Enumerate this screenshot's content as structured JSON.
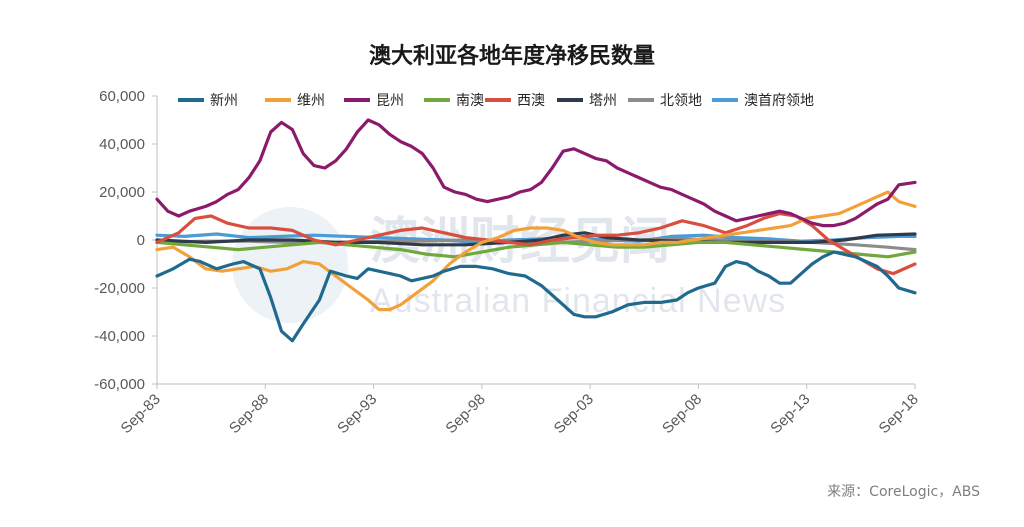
{
  "chart_data": {
    "type": "line",
    "title": "澳大利亚各地年度净移民数量",
    "xlabel": "",
    "ylabel": "",
    "ylim": [
      -60000,
      60000
    ],
    "yticks": [
      60000,
      40000,
      20000,
      0,
      -20000,
      -40000,
      -60000
    ],
    "ytick_labels": [
      "60,000",
      "40,000",
      "20,000",
      "0",
      "-20,000",
      "-40,000",
      "-60,000"
    ],
    "xlim": [
      1983.75,
      2018.75
    ],
    "xticks": [
      1983.75,
      1988.75,
      1993.75,
      1998.75,
      2003.75,
      2008.75,
      2013.75,
      2018.75
    ],
    "xtick_labels": [
      "Sep-83",
      "Sep-88",
      "Sep-93",
      "Sep-98",
      "Sep-03",
      "Sep-08",
      "Sep-13",
      "Sep-18"
    ],
    "grid": false,
    "legend_position": "top",
    "series": [
      {
        "name": "新州",
        "color": "#1f6a8e",
        "x": [
          1983.75,
          1984.5,
          1985.25,
          1985.75,
          1986.5,
          1987.25,
          1987.75,
          1988.5,
          1989,
          1989.5,
          1990,
          1990.5,
          1991.25,
          1991.75,
          1992.5,
          1993,
          1993.5,
          1994,
          1994.5,
          1995,
          1995.5,
          1996,
          1996.5,
          1997,
          1997.75,
          1998.5,
          1999.25,
          2000,
          2000.75,
          2001.5,
          2002.25,
          2003,
          2003.5,
          2004,
          2004.75,
          2005.5,
          2006.25,
          2007,
          2007.75,
          2008.25,
          2008.75,
          2009.5,
          2010,
          2010.5,
          2011,
          2011.5,
          2012,
          2012.5,
          2013,
          2013.5,
          2014,
          2014.5,
          2015,
          2015.5,
          2016,
          2016.5,
          2017,
          2017.5,
          2018,
          2018.75
        ],
        "y": [
          -15000,
          -12000,
          -8000,
          -9000,
          -12000,
          -10000,
          -9000,
          -12000,
          -24000,
          -38000,
          -42000,
          -35000,
          -25000,
          -13000,
          -15000,
          -16000,
          -12000,
          -13000,
          -14000,
          -15000,
          -17000,
          -16000,
          -15000,
          -13000,
          -11000,
          -11000,
          -12000,
          -14000,
          -15000,
          -19000,
          -25000,
          -31000,
          -32000,
          -32000,
          -30000,
          -27000,
          -26000,
          -26000,
          -25000,
          -22000,
          -20000,
          -18000,
          -11000,
          -9000,
          -10000,
          -13000,
          -15000,
          -18000,
          -18000,
          -14000,
          -10000,
          -7000,
          -5000,
          -6000,
          -7000,
          -9000,
          -11000,
          -15000,
          -20000,
          -22000
        ]
      },
      {
        "name": "维州",
        "color": "#f2a13a",
        "x": [
          1983.75,
          1984.5,
          1985.25,
          1986,
          1986.75,
          1987.5,
          1988.25,
          1989,
          1989.75,
          1990.5,
          1991.25,
          1992,
          1992.75,
          1993.5,
          1994,
          1994.5,
          1995,
          1995.75,
          1996.5,
          1997.25,
          1998,
          1998.75,
          1999.5,
          2000.25,
          2001,
          2001.75,
          2002.5,
          2003.25,
          2004,
          2004.75,
          2005.5,
          2006.25,
          2007,
          2007.75,
          2008.5,
          2009.25,
          2010,
          2010.75,
          2011.5,
          2012.25,
          2013,
          2013.75,
          2014.5,
          2015.25,
          2016,
          2016.75,
          2017.5,
          2018,
          2018.75
        ],
        "y": [
          -4000,
          -3000,
          -7000,
          -12000,
          -13000,
          -12000,
          -11000,
          -13000,
          -12000,
          -9000,
          -10000,
          -15000,
          -20000,
          -25000,
          -29000,
          -29000,
          -27000,
          -22000,
          -17000,
          -10000,
          -5000,
          -1000,
          1000,
          4000,
          5000,
          5000,
          4000,
          1000,
          -1000,
          -2000,
          -2000,
          -2000,
          -1000,
          -1000,
          0,
          1000,
          2000,
          3000,
          4000,
          5000,
          6000,
          9000,
          10000,
          11000,
          14000,
          17000,
          20000,
          16000,
          14000
        ]
      },
      {
        "name": "昆州",
        "color": "#8b1a6c",
        "x": [
          1983.75,
          1984.25,
          1984.75,
          1985.25,
          1986,
          1986.5,
          1987,
          1987.5,
          1988,
          1988.5,
          1989,
          1989.5,
          1990,
          1990.5,
          1991,
          1991.5,
          1992,
          1992.5,
          1993,
          1993.5,
          1994,
          1994.5,
          1995,
          1995.5,
          1996,
          1996.5,
          1997,
          1997.5,
          1998,
          1998.5,
          1999,
          1999.5,
          2000,
          2000.5,
          2001,
          2001.5,
          2002,
          2002.5,
          2003,
          2003.5,
          2004,
          2004.5,
          2005,
          2005.5,
          2006,
          2006.5,
          2007,
          2007.5,
          2008,
          2008.5,
          2009,
          2009.5,
          2010,
          2010.5,
          2011,
          2011.5,
          2012,
          2012.5,
          2013,
          2013.5,
          2014,
          2014.5,
          2015,
          2015.5,
          2016,
          2016.5,
          2017,
          2017.5,
          2018,
          2018.75
        ],
        "y": [
          17000,
          12000,
          10000,
          12000,
          14000,
          16000,
          19000,
          21000,
          26000,
          33000,
          45000,
          49000,
          46000,
          36000,
          31000,
          30000,
          33000,
          38000,
          45000,
          50000,
          48000,
          44000,
          41000,
          39000,
          36000,
          30000,
          22000,
          20000,
          19000,
          17000,
          16000,
          17000,
          18000,
          20000,
          21000,
          24000,
          30000,
          37000,
          38000,
          36000,
          34000,
          33000,
          30000,
          28000,
          26000,
          24000,
          22000,
          21000,
          19000,
          17000,
          15000,
          12000,
          10000,
          8000,
          9000,
          10000,
          11000,
          12000,
          11000,
          9000,
          7000,
          6000,
          6000,
          7000,
          9000,
          12000,
          15000,
          17000,
          23000,
          24000
        ]
      },
      {
        "name": "南澳",
        "color": "#71a83e",
        "x": [
          1983.75,
          1985,
          1986.25,
          1987.5,
          1988.75,
          1990,
          1991.25,
          1992.5,
          1993.75,
          1995,
          1996.25,
          1997.5,
          1998.75,
          2000,
          2001.25,
          2002.5,
          2003.75,
          2005,
          2006.25,
          2007.5,
          2008.75,
          2010,
          2011.25,
          2012.5,
          2013.75,
          2015,
          2016.25,
          2017.5,
          2018.75
        ],
        "y": [
          -1000,
          -2000,
          -3000,
          -4000,
          -3000,
          -2000,
          -1000,
          -2000,
          -3000,
          -4000,
          -6000,
          -7000,
          -5000,
          -3000,
          -2000,
          -1000,
          -2000,
          -3000,
          -3000,
          -2000,
          -1000,
          -1000,
          -2000,
          -3000,
          -4000,
          -5000,
          -6000,
          -7000,
          -5000
        ]
      },
      {
        "name": "西澳",
        "color": "#d94f3f",
        "x": [
          1983.75,
          1984.75,
          1985.5,
          1986.25,
          1987,
          1988,
          1989,
          1990,
          1991,
          1992,
          1993,
          1994,
          1995,
          1996,
          1997,
          1998,
          1999,
          2000,
          2001,
          2002,
          2003,
          2004,
          2005,
          2006,
          2007,
          2008,
          2009,
          2010,
          2011,
          2011.75,
          2012.5,
          2013.25,
          2014,
          2014.75,
          2015.5,
          2016.25,
          2017,
          2017.75,
          2018.75
        ],
        "y": [
          -1000,
          3000,
          9000,
          10000,
          7000,
          5000,
          5000,
          4000,
          0,
          -2000,
          0,
          2000,
          4000,
          5000,
          3000,
          1000,
          0,
          -1000,
          -2000,
          0,
          1000,
          2000,
          2000,
          3000,
          5000,
          8000,
          6000,
          3000,
          6000,
          9000,
          11000,
          10000,
          6000,
          0,
          -4000,
          -8000,
          -12000,
          -14000,
          -10000
        ]
      },
      {
        "name": "塔州",
        "color": "#2f3b4a",
        "x": [
          1983.75,
          1986,
          1988,
          1990,
          1992,
          1994,
          1996,
          1998,
          2000,
          2001.5,
          2002.5,
          2003.5,
          2004.5,
          2006,
          2008,
          2010,
          2012,
          2014,
          2015.5,
          2017,
          2018.75
        ],
        "y": [
          0,
          -1000,
          0,
          0,
          -1000,
          -1000,
          -2000,
          -2000,
          -1000,
          0,
          2000,
          3000,
          1000,
          0,
          -500,
          -1000,
          -1000,
          -1000,
          0,
          2000,
          2500
        ]
      },
      {
        "name": "北领地",
        "color": "#8c8c8c",
        "x": [
          1983.75,
          1986,
          1988,
          1990,
          1992,
          1994,
          1996,
          1998,
          2000,
          2002,
          2004,
          2006,
          2008,
          2010,
          2012,
          2014,
          2016,
          2017.5,
          2018.75
        ],
        "y": [
          -1000,
          -500,
          -500,
          -1000,
          -1000,
          -500,
          -500,
          0,
          -500,
          -1000,
          -500,
          0,
          500,
          0,
          -500,
          -1000,
          -2000,
          -3000,
          -4000
        ]
      },
      {
        "name": "澳首府领地",
        "color": "#4a9bd6",
        "x": [
          1983.75,
          1985,
          1986.5,
          1988,
          1989.5,
          1991,
          1992.5,
          1994,
          1995.5,
          1997,
          1998.5,
          2000,
          2001.5,
          2003,
          2004.5,
          2006,
          2007.5,
          2009,
          2010.5,
          2012,
          2013.5,
          2015,
          2016.5,
          2018,
          2018.75
        ],
        "y": [
          2000,
          1500,
          2500,
          1000,
          1500,
          2000,
          1500,
          1000,
          500,
          0,
          -1000,
          0,
          500,
          1000,
          0,
          -500,
          1500,
          2000,
          1000,
          500,
          -500,
          0,
          1000,
          1500,
          1500
        ]
      }
    ]
  },
  "legend": {
    "items": [
      "新州",
      "维州",
      "昆州",
      "南澳",
      "西澳",
      "塔州",
      "北领地",
      "澳首府领地"
    ]
  },
  "source_text": "来源：CoreLogic，ABS",
  "watermark": {
    "cn": "澳洲财经见闻",
    "en": "Australian Financial News"
  }
}
